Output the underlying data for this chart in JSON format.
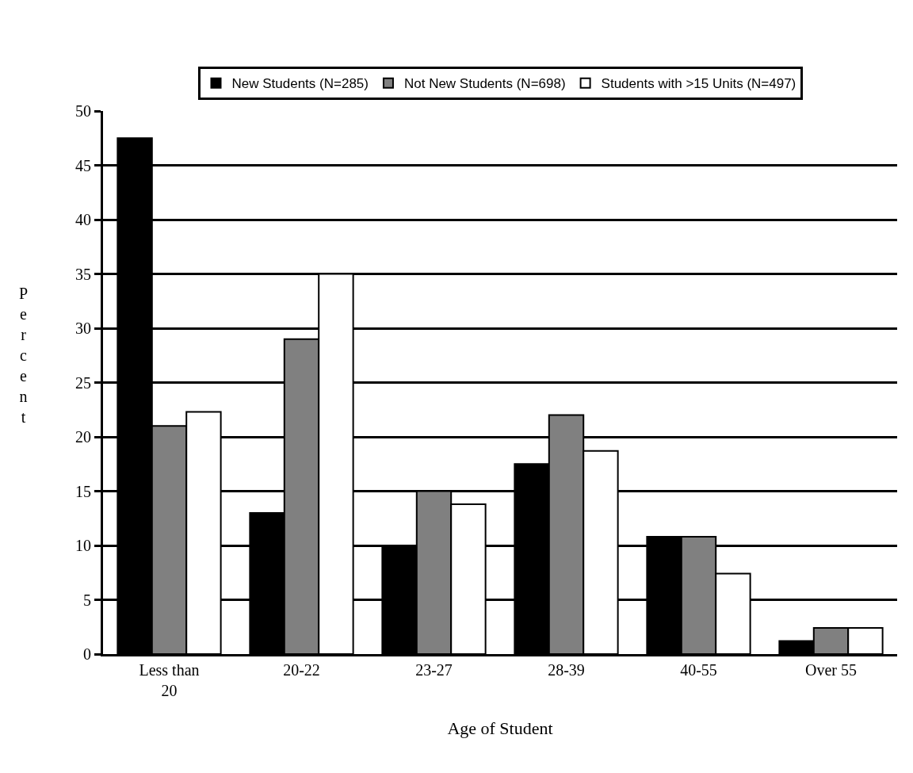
{
  "chart_data": {
    "type": "bar",
    "xlabel": "Age of Student",
    "ylabel": "Percent",
    "categories": [
      "Less than 20",
      "20-22",
      "23-27",
      "28-39",
      "40-55",
      "Over 55"
    ],
    "series": [
      {
        "name": "New Students (N=285)",
        "color": "#000000",
        "values": [
          47.5,
          13,
          10,
          17.5,
          10.8,
          1.2
        ]
      },
      {
        "name": "Not New Students (N=698)",
        "color": "#808080",
        "values": [
          21,
          29,
          15,
          22,
          10.8,
          2.4
        ]
      },
      {
        "name": "Students with >15 Units (N=497)",
        "color": "#ffffff",
        "values": [
          22.3,
          35,
          13.8,
          18.7,
          7.4,
          2.4
        ]
      }
    ],
    "ylim": [
      0,
      50
    ],
    "yticks": [
      0,
      5,
      10,
      15,
      20,
      25,
      30,
      35,
      40,
      45,
      50
    ],
    "grid": "y",
    "legend": "top"
  }
}
